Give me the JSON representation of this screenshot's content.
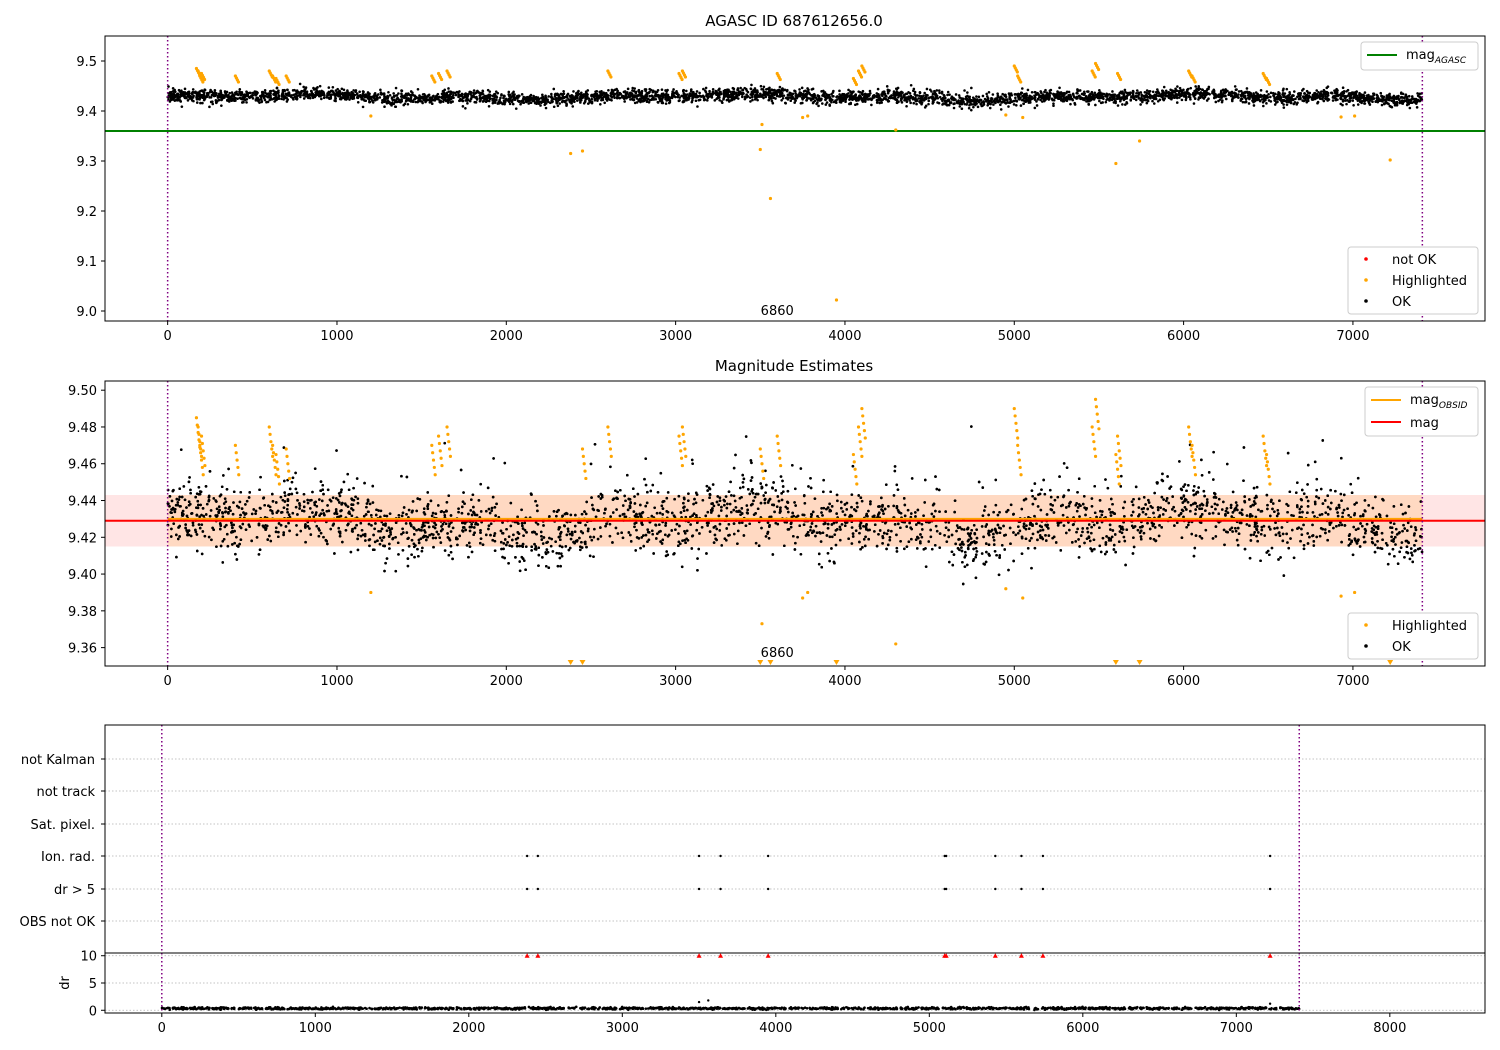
{
  "figure": {
    "title": "AGASC ID 687612656.0"
  },
  "chart_data": [
    {
      "type": "scatter",
      "title": "AGASC ID 687612656.0",
      "xlim": [
        -370,
        7780
      ],
      "ylim": [
        8.98,
        9.55
      ],
      "x_ticks": [
        0,
        1000,
        2000,
        3000,
        4000,
        5000,
        6000,
        7000,
        8000
      ],
      "x_tick_labels": [
        "0",
        "1000",
        "2000",
        "3000",
        "4000",
        "5000",
        "6000",
        "7000",
        "8000"
      ],
      "y_ticks": [
        9.0,
        9.1,
        9.2,
        9.3,
        9.4,
        9.5
      ],
      "y_tick_labels": [
        "9.0",
        "9.1",
        "9.2",
        "9.3",
        "9.4",
        "9.5"
      ],
      "vlines": [
        0,
        7410
      ],
      "hline": {
        "name": "mag_AGASC",
        "value": 9.36,
        "color": "#008000",
        "x_range": [
          -370,
          7780
        ]
      },
      "ok_band": {
        "x_range": [
          0,
          7410
        ],
        "center": 9.428,
        "spread": 0.012
      },
      "annotation": {
        "text": "6860",
        "x": 3600,
        "y": 9.0
      },
      "series": [
        {
          "name": "not OK",
          "color": "#ff0000",
          "x": [],
          "y": []
        },
        {
          "name": "Highlighted",
          "color": "#ffa500",
          "x": [
            170,
            180,
            190,
            200,
            400,
            600,
            620,
            640,
            700,
            1200,
            1560,
            1600,
            1650,
            2380,
            2450,
            2600,
            3020,
            3040,
            3500,
            3510,
            3560,
            3600,
            3750,
            3780,
            3950,
            4050,
            4080,
            4100,
            4300,
            4950,
            5000,
            5020,
            5050,
            5460,
            5480,
            5600,
            5610,
            5740,
            6030,
            6050,
            6470,
            6490,
            6930,
            7010,
            7220
          ],
          "y": [
            9.485,
            9.48,
            9.47,
            9.475,
            9.47,
            9.48,
            9.47,
            9.465,
            9.47,
            9.39,
            9.47,
            9.475,
            9.48,
            9.315,
            9.32,
            9.48,
            9.475,
            9.48,
            9.323,
            9.373,
            9.225,
            9.475,
            9.387,
            9.39,
            9.022,
            9.465,
            9.48,
            9.49,
            9.362,
            9.392,
            9.49,
            9.47,
            9.387,
            9.48,
            9.495,
            9.295,
            9.475,
            9.34,
            9.48,
            9.47,
            9.475,
            9.465,
            9.388,
            9.39,
            9.302
          ]
        },
        {
          "name": "OK",
          "color": "#000000",
          "x": [],
          "y": []
        }
      ],
      "legend": {
        "placement": "top-right and lower-right",
        "entries": [
          "mag_AGASC",
          "not OK",
          "Highlighted",
          "OK"
        ]
      }
    },
    {
      "type": "scatter",
      "title": "Magnitude Estimates",
      "xlim": [
        -370,
        7780
      ],
      "ylim": [
        9.35,
        9.505
      ],
      "x_ticks": [
        0,
        1000,
        2000,
        3000,
        4000,
        5000,
        6000,
        7000,
        8000
      ],
      "x_tick_labels": [
        "0",
        "1000",
        "2000",
        "3000",
        "4000",
        "5000",
        "6000",
        "7000",
        "8000"
      ],
      "y_ticks": [
        9.36,
        9.38,
        9.4,
        9.42,
        9.44,
        9.46,
        9.48,
        9.5
      ],
      "y_tick_labels": [
        "9.36",
        "9.38",
        "9.40",
        "9.42",
        "9.44",
        "9.46",
        "9.48",
        "9.50"
      ],
      "vlines": [
        0,
        7410
      ],
      "hlines": [
        {
          "name": "mag_OBSID",
          "value": 9.43,
          "color": "#ffa500",
          "x_range": [
            0,
            7410
          ]
        },
        {
          "name": "mag",
          "value": 9.429,
          "color": "#ff0000",
          "x_range": [
            -370,
            7780
          ]
        }
      ],
      "bands": [
        {
          "color": "#ffa500",
          "range": [
            9.415,
            9.443
          ],
          "x_range": [
            0,
            7410
          ],
          "opacity": 0.15
        },
        {
          "color": "#ff0000",
          "range": [
            9.415,
            9.443
          ],
          "x_range": [
            -370,
            7780
          ],
          "opacity": 0.1
        }
      ],
      "ok_band": {
        "x_range": [
          0,
          7410
        ],
        "center": 9.428,
        "spread": 0.012
      },
      "annotation": {
        "text": "6860",
        "x": 3600,
        "y": 9.357
      },
      "lower_markers_x": [
        2380,
        2450,
        3500,
        3560,
        3950,
        5600,
        5740,
        7220
      ],
      "series": [
        {
          "name": "Highlighted",
          "color": "#ffa500",
          "x": [
            170,
            180,
            190,
            200,
            400,
            600,
            620,
            640,
            700,
            1200,
            1560,
            1600,
            1650,
            2450,
            2600,
            3020,
            3040,
            3500,
            3510,
            3600,
            3750,
            3780,
            4050,
            4080,
            4100,
            4300,
            4950,
            5000,
            5020,
            5050,
            5460,
            5480,
            5600,
            5610,
            6030,
            6050,
            6470,
            6490,
            6930,
            7010
          ],
          "y": [
            9.485,
            9.48,
            9.47,
            9.475,
            9.47,
            9.48,
            9.47,
            9.465,
            9.468,
            9.39,
            9.47,
            9.475,
            9.48,
            9.468,
            9.48,
            9.475,
            9.48,
            9.468,
            9.373,
            9.475,
            9.387,
            9.39,
            9.465,
            9.48,
            9.49,
            9.362,
            9.392,
            9.49,
            9.47,
            9.387,
            9.48,
            9.495,
            9.465,
            9.475,
            9.48,
            9.47,
            9.475,
            9.465,
            9.388,
            9.39
          ]
        },
        {
          "name": "OK",
          "color": "#000000",
          "x": [],
          "y": []
        }
      ],
      "legend": {
        "placement": "top-right and lower-right",
        "entries": [
          "mag_OBSID",
          "mag",
          "Highlighted",
          "OK"
        ]
      }
    },
    {
      "type": "scatter",
      "title": "",
      "xlim": [
        -370,
        8620
      ],
      "x_ticks": [
        0,
        1000,
        2000,
        3000,
        4000,
        5000,
        6000,
        7000,
        8000
      ],
      "x_tick_labels": [
        "0",
        "1000",
        "2000",
        "3000",
        "4000",
        "5000",
        "6000",
        "7000",
        "8000"
      ],
      "vlines": [
        0,
        7410
      ],
      "categories": [
        "not Kalman",
        "not track",
        "Sat. pixel.",
        "Ion. rad.",
        "dr > 5",
        "OBS not OK"
      ],
      "flag_x": {
        "not Kalman": [],
        "not track": [],
        "Sat. pixel.": [],
        "Ion. rad.": [
          2380,
          2450,
          3500,
          3640,
          3950,
          5100,
          5110,
          5430,
          5600,
          5740,
          7220
        ],
        "dr > 5": [
          2380,
          2450,
          3500,
          3640,
          3950,
          5100,
          5110,
          5430,
          5600,
          5740,
          7220
        ],
        "OBS not OK": []
      }
    },
    {
      "type": "scatter",
      "title": "",
      "ylabel": "dr",
      "xlim": [
        -370,
        8620
      ],
      "ylim": [
        -0.5,
        10.5
      ],
      "x_ticks": [
        0,
        1000,
        2000,
        3000,
        4000,
        5000,
        6000,
        7000,
        8000
      ],
      "x_tick_labels": [
        "0",
        "1000",
        "2000",
        "3000",
        "4000",
        "5000",
        "6000",
        "7000",
        "8000"
      ],
      "y_ticks": [
        0,
        5,
        10
      ],
      "y_tick_labels": [
        "0",
        "5",
        "10"
      ],
      "vlines": [
        0,
        7410
      ],
      "clipped_at_10_x": [
        2380,
        2450,
        3500,
        3640,
        3950,
        5100,
        5110,
        5430,
        5600,
        5740,
        7220
      ],
      "dr_band": {
        "x_range": [
          0,
          7410
        ],
        "center": 0.35,
        "spread": 0.2
      },
      "outliers": {
        "x": [
          3500,
          3560,
          7220
        ],
        "y": [
          1.5,
          1.8,
          1.2
        ]
      }
    }
  ]
}
